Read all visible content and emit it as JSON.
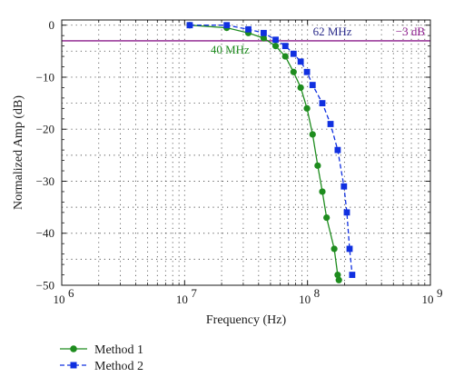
{
  "chart_data": {
    "type": "line",
    "xlabel": "Frequency (Hz)",
    "ylabel": "Normalized Amp (dB)",
    "x_scale": "log",
    "xlim": [
      1000000,
      1000000000
    ],
    "ylim": [
      -50,
      1
    ],
    "x_tick_labels": [
      {
        "base": "10",
        "exp": "6"
      },
      {
        "base": "10",
        "exp": "7"
      },
      {
        "base": "10",
        "exp": "8"
      },
      {
        "base": "10",
        "exp": "9"
      }
    ],
    "x_tick_values": [
      1000000,
      10000000,
      100000000,
      1000000000
    ],
    "y_ticks": [
      0,
      -10,
      -20,
      -30,
      -40,
      -50
    ],
    "y_tick_labels": [
      "0",
      "−10",
      "−20",
      "−30",
      "−40",
      "−50"
    ],
    "grid": true,
    "legend_position": "bottom-left",
    "series": [
      {
        "name": "Method 1",
        "color": "#1e8c1e",
        "marker": "circle",
        "x": [
          11000000,
          22000000,
          33000000,
          44000000,
          55000000,
          66000000,
          77000000,
          88000000,
          99000000,
          110000000,
          121000000,
          132000000,
          143000000,
          165000000,
          176000000,
          180000000
        ],
        "y": [
          0,
          -0.5,
          -1.5,
          -2.5,
          -4,
          -6,
          -9,
          -12,
          -16,
          -21,
          -27,
          -32,
          -37,
          -43,
          -48,
          -49
        ]
      },
      {
        "name": "Method 2",
        "color": "#1030e0",
        "marker": "square",
        "x": [
          11000000,
          22000000,
          33000000,
          44000000,
          55000000,
          66000000,
          77000000,
          88000000,
          99000000,
          110000000,
          132000000,
          154000000,
          176000000,
          198000000,
          209000000,
          220000000,
          231000000
        ],
        "y": [
          0,
          0,
          -0.8,
          -1.5,
          -2.8,
          -4,
          -5.5,
          -7,
          -9,
          -11.5,
          -15,
          -19,
          -24,
          -31,
          -36,
          -43,
          -48
        ]
      }
    ],
    "reference_line": {
      "y": -3,
      "label": "−3 dB",
      "color": "#8b1a8b"
    },
    "annotations": [
      {
        "text": "62 MHz",
        "x": 62000000,
        "y": -3,
        "color": "#2a2a8a"
      },
      {
        "text": "40 MHz",
        "x": 40000000,
        "y": -3,
        "color": "#1e8c1e"
      }
    ]
  }
}
